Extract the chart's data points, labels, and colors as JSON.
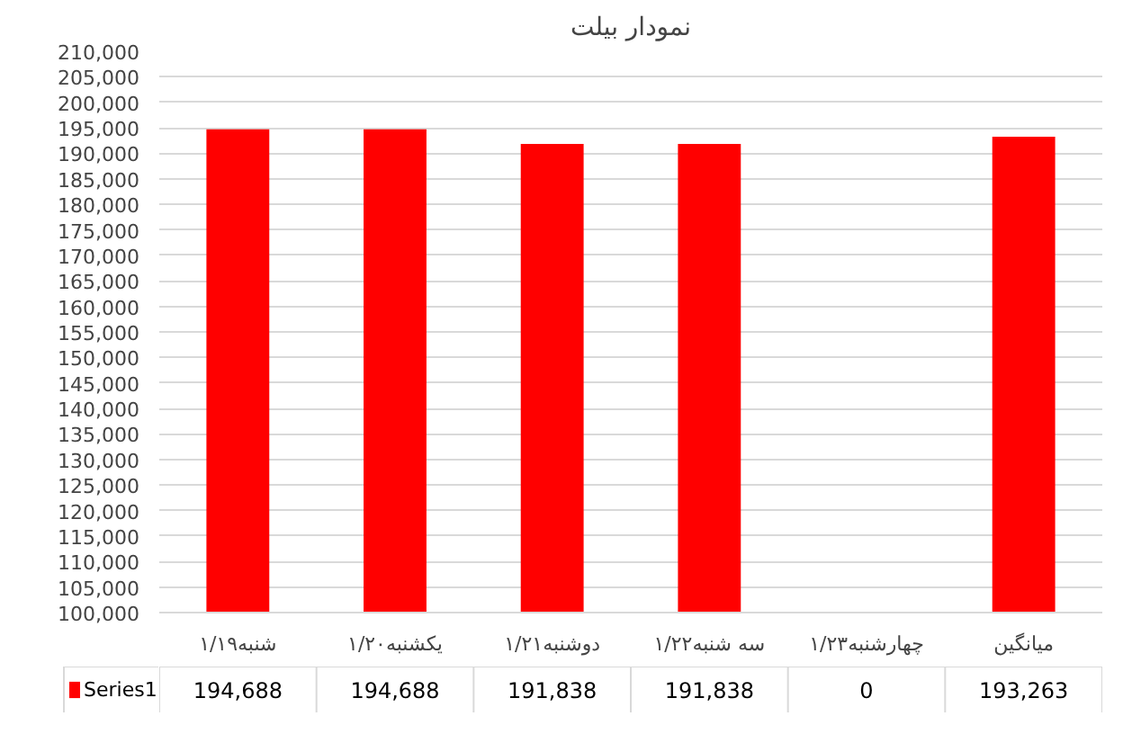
{
  "chart_data": {
    "type": "bar",
    "title": "نمودار بیلت",
    "categories": [
      "شنبه۱/۱۹",
      "یکشنبه۱/۲۰",
      "دوشنبه۱/۲۱",
      "سه شنبه۱/۲۲",
      "چهارشنبه۱/۲۳",
      "میانگین"
    ],
    "series": [
      {
        "name": "Series1",
        "color": "#ff0000",
        "values": [
          194688,
          194688,
          191838,
          191838,
          null,
          193263
        ],
        "value_labels": [
          "194,688",
          "194,688",
          "191,838",
          "191,838",
          "0",
          "193,263"
        ]
      }
    ],
    "ylim": [
      100000,
      210000
    ],
    "yticks": [
      {
        "value": 100000,
        "label": "100,000"
      },
      {
        "value": 105000,
        "label": "105,000"
      },
      {
        "value": 110000,
        "label": "110,000"
      },
      {
        "value": 115000,
        "label": "115,000"
      },
      {
        "value": 120000,
        "label": "120,000"
      },
      {
        "value": 125000,
        "label": "125,000"
      },
      {
        "value": 130000,
        "label": "130,000"
      },
      {
        "value": 135000,
        "label": "135,000"
      },
      {
        "value": 140000,
        "label": "140,000"
      },
      {
        "value": 145000,
        "label": "145,000"
      },
      {
        "value": 150000,
        "label": "150,000"
      },
      {
        "value": 155000,
        "label": "155,000"
      },
      {
        "value": 160000,
        "label": "160,000"
      },
      {
        "value": 165000,
        "label": "165,000"
      },
      {
        "value": 170000,
        "label": "170,000"
      },
      {
        "value": 175000,
        "label": "175,000"
      },
      {
        "value": 180000,
        "label": "180,000"
      },
      {
        "value": 185000,
        "label": "185,000"
      },
      {
        "value": 190000,
        "label": "190,000"
      },
      {
        "value": 195000,
        "label": "195,000"
      },
      {
        "value": 200000,
        "label": "200,000"
      },
      {
        "value": 205000,
        "label": "205,000"
      },
      {
        "value": 210000,
        "label": "210,000"
      }
    ],
    "grid": "y"
  }
}
